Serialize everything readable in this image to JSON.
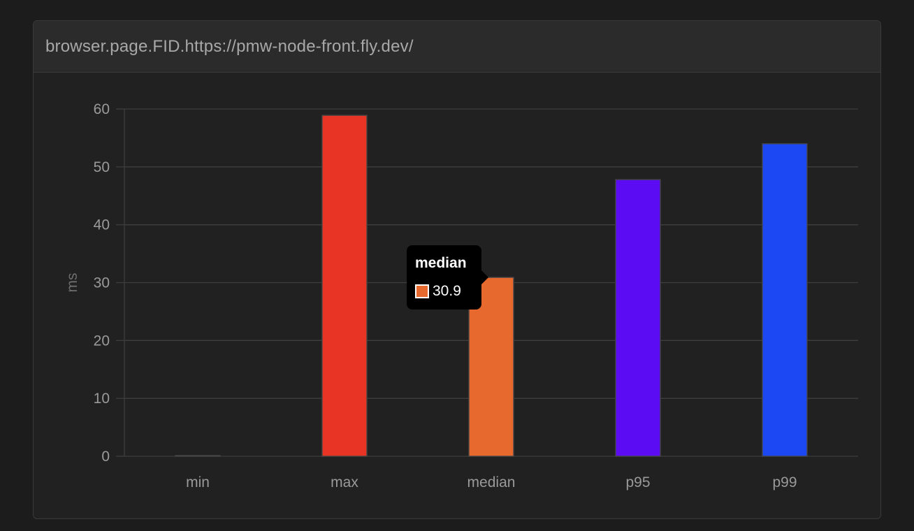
{
  "header": {
    "title": "browser.page.FID.https://pmw-node-front.fly.dev/"
  },
  "chart_data": {
    "type": "bar",
    "categories": [
      "min",
      "max",
      "median",
      "p95",
      "p99"
    ],
    "values": [
      0,
      58.9,
      30.9,
      47.8,
      54
    ],
    "colors": [
      "#4a4a4a",
      "#e83425",
      "#e8692e",
      "#5c0cf2",
      "#1b48f2"
    ],
    "ylabel": "ms",
    "ylim": [
      0,
      60
    ],
    "yticks": [
      0,
      10,
      20,
      30,
      40,
      50,
      60
    ],
    "grid": true,
    "tooltip": {
      "title": "median",
      "value": "30.9",
      "color": "#e8692e"
    }
  }
}
